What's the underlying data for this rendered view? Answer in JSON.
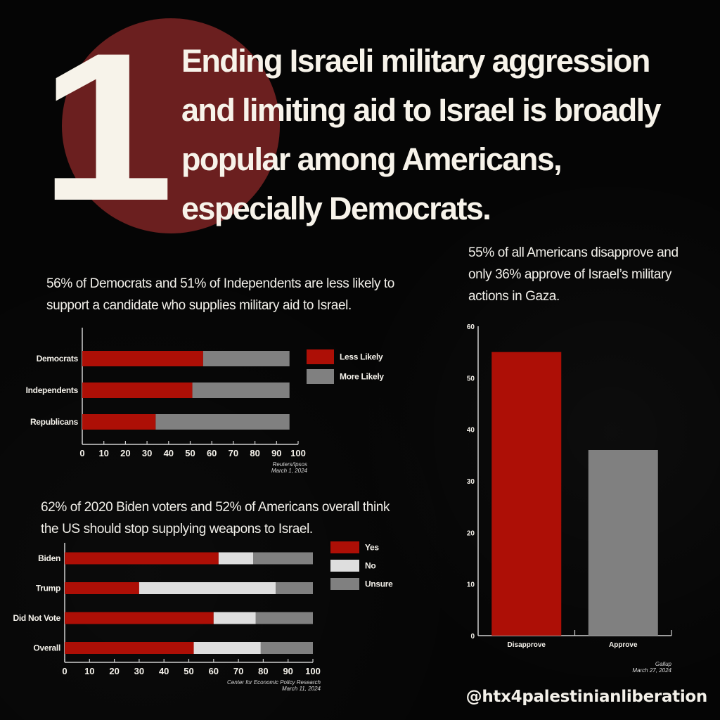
{
  "header": {
    "number": "1",
    "headline": "Ending Israeli military aggression and limiting aid to Israel is broadly popular among Americans, especially Democrats."
  },
  "footer": {
    "handle": "@htx4palestinianliberation"
  },
  "colors": {
    "red": "#ad0f06",
    "gray": "#808080",
    "light": "#dedede",
    "circle": "#6b1f1f"
  },
  "chart_data": [
    {
      "id": "likelihood",
      "type": "bar",
      "orientation": "horizontal",
      "stacked": true,
      "caption": "56% of Democrats and 51% of Independents are less likely to support a candidate who supplies military aid to Israel.",
      "categories": [
        "Democrats",
        "Independents",
        "Republicans"
      ],
      "series": [
        {
          "name": "Less Likely",
          "color": "#ad0f06",
          "values": [
            56,
            51,
            34
          ]
        },
        {
          "name": "More Likely",
          "color": "#808080",
          "values": [
            40,
            45,
            62
          ]
        }
      ],
      "xlim": [
        0,
        100
      ],
      "xticks": [
        0,
        10,
        20,
        30,
        40,
        50,
        60,
        70,
        80,
        90,
        100
      ],
      "legend": "right",
      "source": "Reuters/Ipsos",
      "date": "March 1, 2024"
    },
    {
      "id": "weapons",
      "type": "bar",
      "orientation": "horizontal",
      "stacked": true,
      "caption": "62% of 2020 Biden voters and 52% of Americans overall think the US should stop supplying weapons to Israel.",
      "categories": [
        "Biden",
        "Trump",
        "Did Not Vote",
        "Overall"
      ],
      "series": [
        {
          "name": "Yes",
          "color": "#ad0f06",
          "values": [
            62,
            30,
            60,
            52
          ]
        },
        {
          "name": "No",
          "color": "#dedede",
          "values": [
            14,
            55,
            17,
            27
          ]
        },
        {
          "name": "Unsure",
          "color": "#808080",
          "values": [
            24,
            15,
            23,
            21
          ]
        }
      ],
      "xlim": [
        0,
        100
      ],
      "xticks": [
        0,
        10,
        20,
        30,
        40,
        50,
        60,
        70,
        80,
        90,
        100
      ],
      "legend": "right",
      "source": "Center for Economic Policy Research",
      "date": "March 11, 2024"
    },
    {
      "id": "approval",
      "type": "bar",
      "orientation": "vertical",
      "caption": "55% of all Americans disapprove and only 36% approve of Israel’s military actions in Gaza.",
      "categories": [
        "Disapprove",
        "Approve"
      ],
      "values": [
        55,
        36
      ],
      "colors": [
        "#ad0f06",
        "#808080"
      ],
      "ylim": [
        0,
        60
      ],
      "yticks": [
        0,
        10,
        20,
        30,
        40,
        50,
        60
      ],
      "source": "Gallup",
      "date": "March 27, 2024"
    }
  ]
}
